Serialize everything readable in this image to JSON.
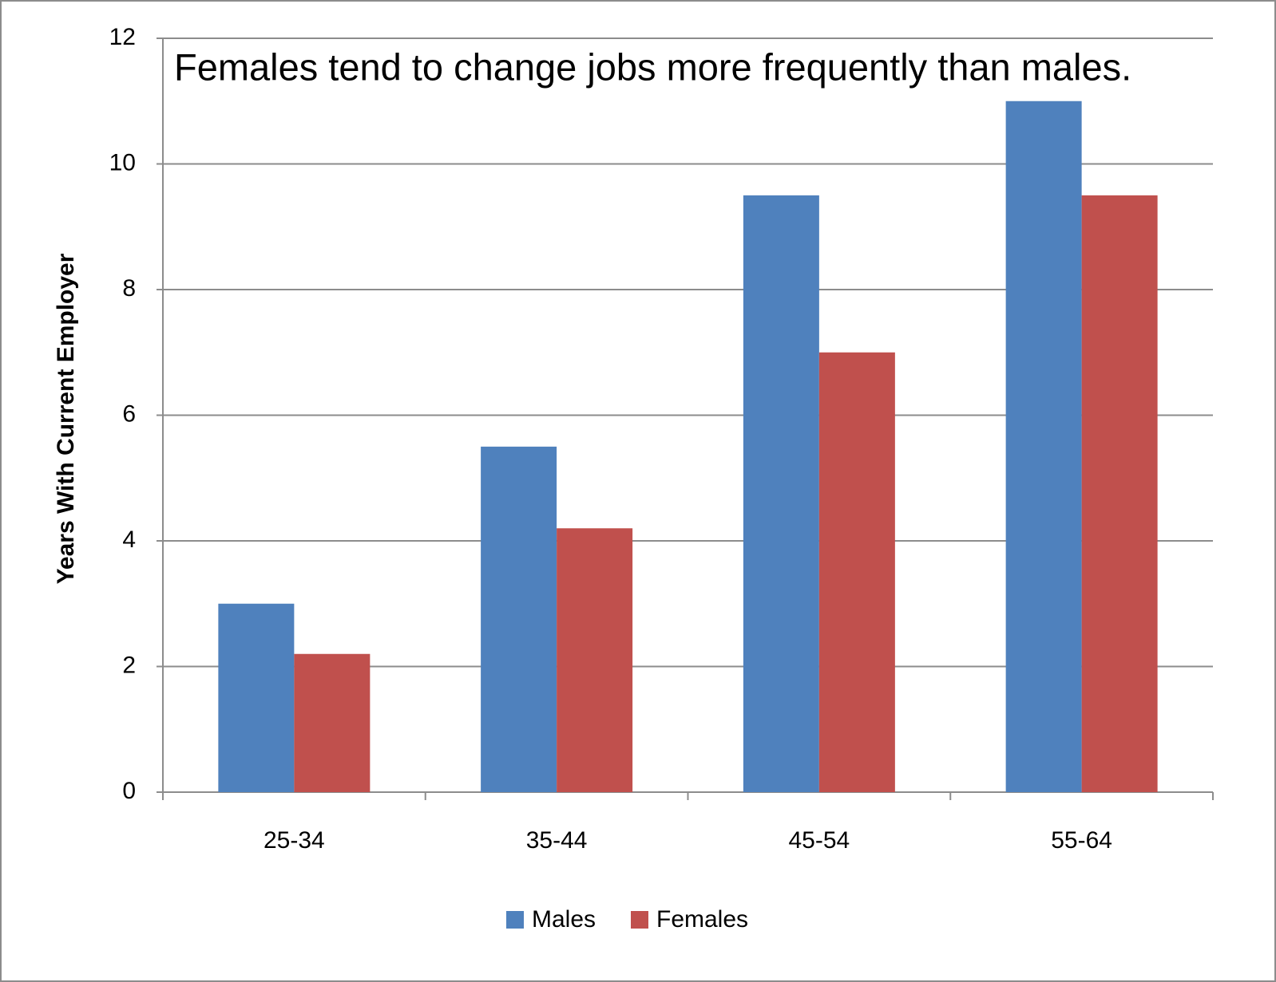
{
  "chart_data": {
    "type": "bar",
    "title": "Females tend to change jobs more frequently than males.",
    "y_label": "Years With Current Employer",
    "categories": [
      "25-34",
      "35-44",
      "45-54",
      "55-64"
    ],
    "series": [
      {
        "name": "Males",
        "color": "#4f81bd",
        "values": [
          3,
          5.5,
          9.5,
          11
        ]
      },
      {
        "name": "Females",
        "color": "#c0504d",
        "values": [
          2.2,
          4.2,
          7,
          9.5
        ]
      }
    ],
    "ylim": [
      0,
      12
    ],
    "yticks": [
      0,
      2,
      4,
      6,
      8,
      10,
      12
    ],
    "grid": true,
    "legend": "bottom"
  }
}
